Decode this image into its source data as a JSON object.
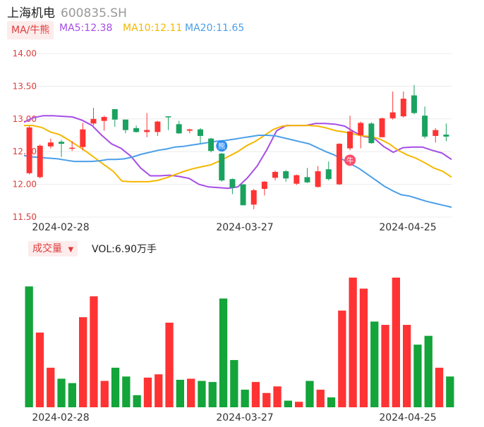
{
  "header": {
    "name": "上海机电",
    "code": "600835.SH"
  },
  "legend": {
    "ma_label": "MA/牛熊",
    "ma5": "MA5:12.38",
    "ma10": "MA10:12.11",
    "ma20": "MA20:11.65"
  },
  "volume": {
    "label": "成交量",
    "arrow": "▼",
    "vol_text": "VOL:6.90万手"
  },
  "colors": {
    "up": "#ff3333",
    "down": "#1aa260",
    "ma5": "#a64de6",
    "ma10": "#f5b800",
    "ma20": "#4a9fe8",
    "vol_up": "#ff3333",
    "vol_down": "#13a43a"
  },
  "chart_data": [
    {
      "type": "candlestick",
      "ylim": [
        11.5,
        14.0
      ],
      "y_ticks": [
        "14.00",
        "13.50",
        "13.00",
        "12.50",
        "12.00",
        "11.50"
      ],
      "x_tick_labels": [
        "2024-02-28",
        "2024-03-27",
        "2024-04-25"
      ],
      "markers": [
        {
          "index": 18,
          "text": "熊"
        },
        {
          "index": 30,
          "text": "牛"
        }
      ],
      "candles": [
        {
          "o": 12.17,
          "c": 12.87,
          "h": 12.89,
          "l": 12.15
        },
        {
          "o": 12.11,
          "c": 12.59,
          "h": 12.61,
          "l": 12.09
        },
        {
          "o": 12.58,
          "c": 12.64,
          "h": 12.7,
          "l": 12.55
        },
        {
          "o": 12.65,
          "c": 12.62,
          "h": 12.68,
          "l": 12.42
        },
        {
          "o": 12.56,
          "c": 12.56,
          "h": 12.66,
          "l": 12.51
        },
        {
          "o": 12.57,
          "c": 12.84,
          "h": 12.94,
          "l": 12.52
        },
        {
          "o": 12.93,
          "c": 13.0,
          "h": 13.17,
          "l": 12.9
        },
        {
          "o": 12.97,
          "c": 13.03,
          "h": 13.05,
          "l": 12.82
        },
        {
          "o": 13.15,
          "c": 12.99,
          "h": 13.15,
          "l": 12.88
        },
        {
          "o": 12.99,
          "c": 12.83,
          "h": 12.99,
          "l": 12.78
        },
        {
          "o": 12.86,
          "c": 12.8,
          "h": 12.9,
          "l": 12.79
        },
        {
          "o": 12.8,
          "c": 12.83,
          "h": 13.09,
          "l": 12.72
        },
        {
          "o": 12.8,
          "c": 12.96,
          "h": 12.97,
          "l": 12.74
        },
        {
          "o": 13.04,
          "c": 13.03,
          "h": 13.04,
          "l": 12.83
        },
        {
          "o": 12.92,
          "c": 12.78,
          "h": 12.97,
          "l": 12.77
        },
        {
          "o": 12.82,
          "c": 12.84,
          "h": 12.85,
          "l": 12.78
        },
        {
          "o": 12.84,
          "c": 12.74,
          "h": 12.86,
          "l": 12.63
        },
        {
          "o": 12.7,
          "c": 12.51,
          "h": 12.71,
          "l": 12.49
        },
        {
          "o": 12.47,
          "c": 12.06,
          "h": 12.48,
          "l": 12.04
        },
        {
          "o": 12.08,
          "c": 11.95,
          "h": 12.09,
          "l": 11.85
        },
        {
          "o": 12.0,
          "c": 11.68,
          "h": 12.0,
          "l": 11.68
        },
        {
          "o": 11.69,
          "c": 11.91,
          "h": 11.93,
          "l": 11.62
        },
        {
          "o": 11.93,
          "c": 12.04,
          "h": 12.05,
          "l": 11.83
        },
        {
          "o": 12.1,
          "c": 12.19,
          "h": 12.21,
          "l": 12.06
        },
        {
          "o": 12.2,
          "c": 12.09,
          "h": 12.22,
          "l": 12.04
        },
        {
          "o": 12.01,
          "c": 12.14,
          "h": 12.15,
          "l": 11.99
        },
        {
          "o": 12.11,
          "c": 12.03,
          "h": 12.25,
          "l": 12.02
        },
        {
          "o": 11.96,
          "c": 12.2,
          "h": 12.28,
          "l": 11.95
        },
        {
          "o": 12.23,
          "c": 12.08,
          "h": 12.35,
          "l": 12.06
        },
        {
          "o": 12.0,
          "c": 12.62,
          "h": 12.63,
          "l": 11.99
        },
        {
          "o": 12.55,
          "c": 12.81,
          "h": 13.05,
          "l": 12.52
        },
        {
          "o": 12.75,
          "c": 12.94,
          "h": 12.96,
          "l": 12.55
        },
        {
          "o": 12.93,
          "c": 12.63,
          "h": 12.95,
          "l": 12.62
        },
        {
          "o": 12.72,
          "c": 13.01,
          "h": 13.02,
          "l": 12.72
        },
        {
          "o": 13.01,
          "c": 13.1,
          "h": 13.42,
          "l": 12.99
        },
        {
          "o": 13.04,
          "c": 13.31,
          "h": 13.42,
          "l": 13.02
        },
        {
          "o": 13.36,
          "c": 13.09,
          "h": 13.52,
          "l": 13.07
        },
        {
          "o": 13.05,
          "c": 12.73,
          "h": 13.19,
          "l": 12.7
        },
        {
          "o": 12.74,
          "c": 12.83,
          "h": 12.86,
          "l": 12.64
        },
        {
          "o": 12.76,
          "c": 12.73,
          "h": 12.93,
          "l": 12.66
        }
      ],
      "series": [
        {
          "name": "MA5",
          "values": [
            12.95,
            13.02,
            13.05,
            13.05,
            13.04,
            13.03,
            12.98,
            12.9,
            12.75,
            12.62,
            12.55,
            12.43,
            12.25,
            12.13,
            12.13,
            12.14,
            12.12,
            12.09,
            12.0,
            11.96,
            11.95,
            11.94,
            11.96,
            12.1,
            12.28,
            12.53,
            12.82,
            12.9,
            12.9,
            12.9,
            12.93,
            12.93,
            12.92,
            12.89,
            12.8,
            12.73,
            12.71,
            12.58,
            12.49,
            12.56,
            12.57,
            12.57,
            12.52,
            12.48,
            12.38
          ]
        },
        {
          "name": "MA10",
          "values": [
            12.9,
            12.9,
            12.87,
            12.8,
            12.76,
            12.68,
            12.59,
            12.5,
            12.4,
            12.3,
            12.2,
            12.05,
            12.04,
            12.04,
            12.04,
            12.06,
            12.1,
            12.15,
            12.2,
            12.24,
            12.27,
            12.3,
            12.36,
            12.43,
            12.5,
            12.59,
            12.66,
            12.75,
            12.84,
            12.89,
            12.9,
            12.9,
            12.9,
            12.89,
            12.86,
            12.82,
            12.8,
            12.77,
            12.74,
            12.73,
            12.69,
            12.62,
            12.52,
            12.45,
            12.4,
            12.33,
            12.25,
            12.2,
            12.11
          ]
        },
        {
          "name": "MA20",
          "values": [
            12.44,
            12.42,
            12.41,
            12.4,
            12.39,
            12.37,
            12.35,
            12.35,
            12.35,
            12.36,
            12.38,
            12.38,
            12.39,
            12.42,
            12.46,
            12.49,
            12.52,
            12.54,
            12.57,
            12.58,
            12.6,
            12.62,
            12.64,
            12.66,
            12.67,
            12.69,
            12.71,
            12.73,
            12.75,
            12.75,
            12.74,
            12.71,
            12.68,
            12.65,
            12.62,
            12.56,
            12.5,
            12.45,
            12.38,
            12.31,
            12.24,
            12.15,
            12.06,
            11.97,
            11.9,
            11.84,
            11.82,
            11.78,
            11.74,
            11.71,
            11.68,
            11.65
          ]
        }
      ]
    },
    {
      "type": "bar",
      "title": "VOL:6.90万手",
      "x_tick_labels": [
        "2024-02-28",
        "2024-03-27",
        "2024-04-25"
      ],
      "values": [
        11.0,
        6.8,
        3.6,
        2.6,
        2.2,
        8.2,
        10.1,
        2.4,
        3.6,
        2.8,
        1.1,
        2.7,
        3.0,
        7.7,
        2.5,
        2.6,
        2.4,
        2.3,
        9.9,
        4.3,
        1.6,
        2.3,
        1.3,
        1.9,
        0.6,
        0.5,
        2.4,
        1.6,
        0.9,
        8.8,
        11.8,
        10.8,
        7.8,
        7.5,
        11.8,
        7.5,
        5.7,
        6.5,
        3.6,
        2.8
      ],
      "up": [
        false,
        true,
        true,
        false,
        false,
        true,
        true,
        true,
        false,
        false,
        false,
        true,
        true,
        true,
        false,
        true,
        false,
        false,
        false,
        false,
        false,
        true,
        true,
        true,
        false,
        true,
        false,
        true,
        false,
        true,
        true,
        true,
        false,
        true,
        true,
        true,
        false,
        false,
        true,
        false
      ]
    }
  ]
}
